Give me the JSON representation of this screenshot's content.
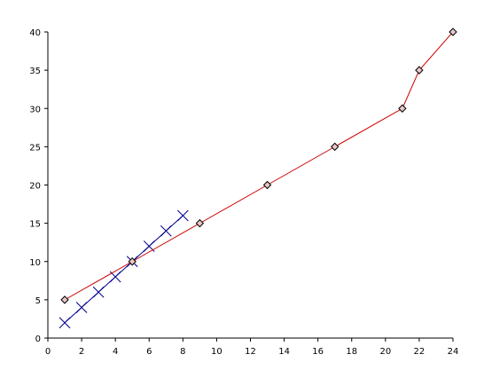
{
  "chart_data": {
    "type": "line",
    "series": [
      {
        "color": "#00008b",
        "marker": "x",
        "x": [
          1,
          2,
          3,
          4,
          5,
          6,
          7,
          8
        ],
        "values": [
          2,
          4,
          6,
          8,
          10,
          12,
          14,
          16
        ]
      },
      {
        "color": "#cc0000",
        "marker": "diamond",
        "x": [
          1,
          5,
          9,
          13,
          17,
          21,
          22,
          24
        ],
        "values": [
          5,
          10,
          15,
          20,
          25,
          30,
          35,
          40
        ]
      }
    ],
    "xlim": [
      0,
      24
    ],
    "xticks": [
      0,
      2,
      4,
      6,
      8,
      10,
      12,
      14,
      16,
      18,
      20,
      22,
      24
    ],
    "ylim": [
      0,
      40
    ],
    "yticks": [
      0,
      5,
      10,
      15,
      20,
      25,
      30,
      35,
      40
    ]
  }
}
